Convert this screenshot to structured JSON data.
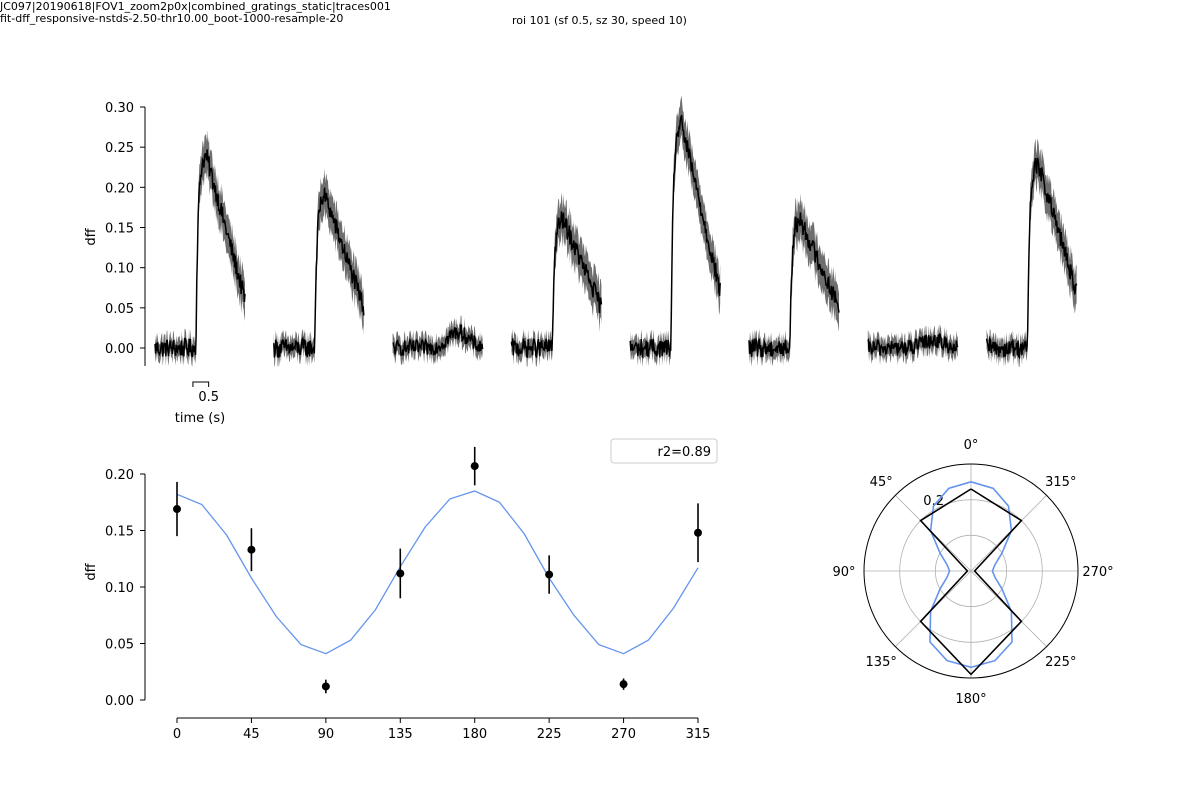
{
  "header": {
    "line1": "JC097|20190618|FOV1_zoom2p0x|combined_gratings_static|traces001",
    "line2": "fit-dff_responsive-nstds-2.50-thr10.00_boot-1000-resample-20",
    "center_title": "roi 101 (sf 0.5, sz 30, speed 10)"
  },
  "chart_data": [
    {
      "type": "line",
      "title": "",
      "ylabel": "dff",
      "ylim": [
        -0.02,
        0.31
      ],
      "yticks": [
        0.0,
        0.05,
        0.1,
        0.15,
        0.2,
        0.25,
        0.3
      ],
      "ytick_labels": [
        "0.00",
        "0.05",
        "0.10",
        "0.15",
        "0.20",
        "0.25",
        "0.30"
      ],
      "scalebar": {
        "value": 0.5,
        "label": "0.5",
        "xlabel": "time (s)"
      },
      "trial_duration_s": 2.2,
      "stim_onset_s": 1.0,
      "mean_color": "#000000",
      "sem_color": "#555555",
      "traces": [
        {
          "condition": 0,
          "baseline": 0.0,
          "peak": 0.24,
          "final": 0.06,
          "shoulder": 0.0,
          "noise": 0.012
        },
        {
          "condition": 45,
          "baseline": 0.0,
          "peak": 0.19,
          "final": 0.05,
          "shoulder": 0.0,
          "noise": 0.012
        },
        {
          "condition": 90,
          "baseline": 0.0,
          "peak": 0.0,
          "final": 0.0,
          "shoulder": 0.02,
          "noise": 0.01
        },
        {
          "condition": 135,
          "baseline": 0.0,
          "peak": 0.16,
          "final": 0.05,
          "shoulder": 0.0,
          "noise": 0.012
        },
        {
          "condition": 180,
          "baseline": 0.0,
          "peak": 0.28,
          "final": 0.07,
          "shoulder": 0.0,
          "noise": 0.012
        },
        {
          "condition": 225,
          "baseline": 0.0,
          "peak": 0.16,
          "final": 0.05,
          "shoulder": 0.0,
          "noise": 0.012
        },
        {
          "condition": 270,
          "baseline": 0.0,
          "peak": 0.0,
          "final": 0.01,
          "shoulder": 0.01,
          "noise": 0.01
        },
        {
          "condition": 315,
          "baseline": 0.0,
          "peak": 0.23,
          "final": 0.07,
          "shoulder": 0.0,
          "noise": 0.012
        }
      ]
    },
    {
      "type": "scatter",
      "title": "",
      "xlabel": "",
      "ylabel": "dff",
      "xlim": [
        -10,
        325
      ],
      "ylim": [
        -0.005,
        0.205
      ],
      "xticks": [
        0,
        45,
        90,
        135,
        180,
        225,
        270,
        315
      ],
      "yticks": [
        0.0,
        0.05,
        0.1,
        0.15,
        0.2
      ],
      "ytick_labels": [
        "0.00",
        "0.05",
        "0.10",
        "0.15",
        "0.20"
      ],
      "legend": {
        "label": "r2=0.89",
        "position": "top-right"
      },
      "points": [
        {
          "x": 0,
          "y": 0.169,
          "err": 0.024
        },
        {
          "x": 45,
          "y": 0.133,
          "err": 0.019
        },
        {
          "x": 90,
          "y": 0.012,
          "err": 0.006
        },
        {
          "x": 135,
          "y": 0.112,
          "err": 0.022
        },
        {
          "x": 180,
          "y": 0.207,
          "err": 0.017
        },
        {
          "x": 225,
          "y": 0.111,
          "err": 0.017
        },
        {
          "x": 270,
          "y": 0.014,
          "err": 0.005
        },
        {
          "x": 315,
          "y": 0.148,
          "err": 0.026
        }
      ],
      "fit": {
        "color": "#6495ed",
        "x": [
          0,
          15,
          30,
          45,
          60,
          75,
          90,
          105,
          120,
          135,
          150,
          165,
          180,
          195,
          210,
          225,
          240,
          255,
          270,
          285,
          300,
          315
        ],
        "y": [
          0.182,
          0.173,
          0.146,
          0.108,
          0.074,
          0.049,
          0.041,
          0.053,
          0.08,
          0.118,
          0.153,
          0.178,
          0.185,
          0.175,
          0.147,
          0.108,
          0.075,
          0.049,
          0.041,
          0.053,
          0.081,
          0.117
        ]
      }
    },
    {
      "type": "polar",
      "title": "",
      "theta_labels": [
        "0°",
        "45°",
        "90°",
        "135°",
        "180°",
        "225°",
        "270°",
        "315°"
      ],
      "theta_label_angles": [
        0,
        45,
        90,
        135,
        180,
        225,
        270,
        315
      ],
      "theta_direction": "counterclockwise",
      "theta_zero": "top",
      "rmax": 0.3,
      "rticks": [
        0.1,
        0.2
      ],
      "rtick_labels": [
        "",
        "0.2"
      ],
      "data_series": {
        "color": "#000000",
        "theta": [
          0,
          45,
          90,
          135,
          180,
          225,
          270,
          315,
          360
        ],
        "r": [
          0.23,
          0.2,
          0.01,
          0.2,
          0.29,
          0.2,
          0.01,
          0.2,
          0.23
        ]
      },
      "fit_series": {
        "color": "#6495ed",
        "theta": [
          0,
          15,
          30,
          45,
          60,
          75,
          90,
          105,
          120,
          135,
          150,
          165,
          180,
          195,
          210,
          225,
          240,
          255,
          270,
          285,
          300,
          315,
          330,
          345,
          360
        ],
        "r": [
          0.25,
          0.24,
          0.21,
          0.16,
          0.1,
          0.07,
          0.06,
          0.07,
          0.1,
          0.16,
          0.23,
          0.26,
          0.27,
          0.26,
          0.23,
          0.16,
          0.1,
          0.07,
          0.06,
          0.07,
          0.1,
          0.16,
          0.21,
          0.24,
          0.25
        ]
      }
    }
  ]
}
